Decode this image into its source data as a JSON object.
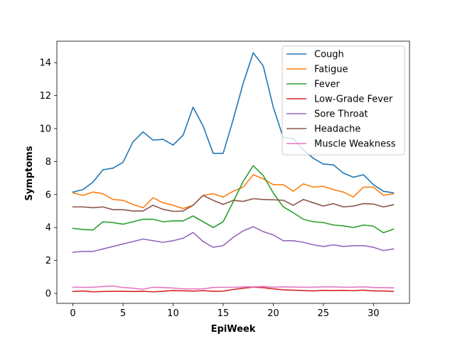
{
  "chart_data": {
    "type": "line",
    "xlabel": "EpiWeek",
    "ylabel": "Symptoms",
    "xlim": [
      -1.6,
      33.6
    ],
    "ylim": [
      -0.6,
      15.3
    ],
    "xticks": [
      0,
      5,
      10,
      15,
      20,
      25,
      30
    ],
    "yticks": [
      0,
      2,
      4,
      6,
      8,
      10,
      12,
      14
    ],
    "grid": false,
    "legend_position": "upper-right",
    "x": [
      0,
      1,
      2,
      3,
      4,
      5,
      6,
      7,
      8,
      9,
      10,
      11,
      12,
      13,
      14,
      15,
      16,
      17,
      18,
      19,
      20,
      21,
      22,
      23,
      24,
      25,
      26,
      27,
      28,
      29,
      30,
      31,
      32
    ],
    "series": [
      {
        "name": "Cough",
        "color": "#1f77b4",
        "values": [
          6.15,
          6.3,
          6.75,
          7.5,
          7.6,
          7.95,
          9.2,
          9.8,
          9.3,
          9.35,
          9.0,
          9.6,
          11.3,
          10.15,
          8.5,
          8.5,
          10.55,
          12.75,
          14.6,
          13.8,
          11.3,
          9.45,
          9.4,
          8.7,
          8.2,
          7.85,
          7.8,
          7.3,
          7.05,
          7.2,
          6.6,
          6.2,
          6.1
        ]
      },
      {
        "name": "Fatigue",
        "color": "#ff7f0e",
        "values": [
          6.1,
          5.95,
          6.15,
          6.05,
          5.7,
          5.65,
          5.4,
          5.2,
          5.8,
          5.5,
          5.35,
          5.15,
          5.35,
          5.95,
          6.05,
          5.85,
          6.2,
          6.45,
          7.2,
          6.95,
          6.6,
          6.6,
          6.2,
          6.65,
          6.45,
          6.5,
          6.3,
          6.15,
          5.85,
          6.45,
          6.45,
          5.95,
          6.05
        ]
      },
      {
        "name": "Fever",
        "color": "#2ca02c",
        "values": [
          3.95,
          3.88,
          3.85,
          4.35,
          4.3,
          4.2,
          4.35,
          4.5,
          4.5,
          4.35,
          4.4,
          4.4,
          4.7,
          4.35,
          4.0,
          4.35,
          5.55,
          6.8,
          7.75,
          7.15,
          6.1,
          5.25,
          4.9,
          4.5,
          4.35,
          4.3,
          4.15,
          4.1,
          4.0,
          4.15,
          4.08,
          3.68,
          3.9
        ]
      },
      {
        "name": "Low-Grade Fever",
        "color": "#d62728",
        "values": [
          0.12,
          0.15,
          0.1,
          0.12,
          0.13,
          0.13,
          0.12,
          0.13,
          0.1,
          0.13,
          0.18,
          0.16,
          0.14,
          0.17,
          0.13,
          0.14,
          0.24,
          0.32,
          0.38,
          0.35,
          0.28,
          0.22,
          0.2,
          0.18,
          0.15,
          0.19,
          0.18,
          0.19,
          0.17,
          0.2,
          0.15,
          0.15,
          0.12
        ]
      },
      {
        "name": "Sore Throat",
        "color": "#9467bd",
        "values": [
          2.5,
          2.55,
          2.55,
          2.7,
          2.85,
          3.0,
          3.15,
          3.3,
          3.2,
          3.1,
          3.2,
          3.35,
          3.7,
          3.15,
          2.8,
          2.9,
          3.4,
          3.8,
          4.05,
          3.75,
          3.55,
          3.2,
          3.2,
          3.1,
          2.95,
          2.85,
          2.95,
          2.85,
          2.9,
          2.9,
          2.8,
          2.6,
          2.7
        ]
      },
      {
        "name": "Headache",
        "color": "#8c564b",
        "values": [
          5.25,
          5.25,
          5.2,
          5.25,
          5.08,
          5.08,
          5.0,
          5.0,
          5.35,
          5.1,
          4.98,
          5.0,
          5.35,
          5.95,
          5.65,
          5.4,
          5.65,
          5.58,
          5.75,
          5.7,
          5.68,
          5.65,
          5.35,
          5.7,
          5.5,
          5.3,
          5.45,
          5.25,
          5.3,
          5.45,
          5.42,
          5.25,
          5.38
        ]
      },
      {
        "name": "Muscle Weakness",
        "color": "#e377c2",
        "values": [
          0.38,
          0.37,
          0.38,
          0.42,
          0.45,
          0.36,
          0.32,
          0.25,
          0.38,
          0.36,
          0.33,
          0.28,
          0.27,
          0.28,
          0.36,
          0.38,
          0.37,
          0.4,
          0.4,
          0.42,
          0.38,
          0.4,
          0.39,
          0.38,
          0.38,
          0.4,
          0.4,
          0.38,
          0.38,
          0.4,
          0.36,
          0.35,
          0.34
        ]
      }
    ]
  }
}
